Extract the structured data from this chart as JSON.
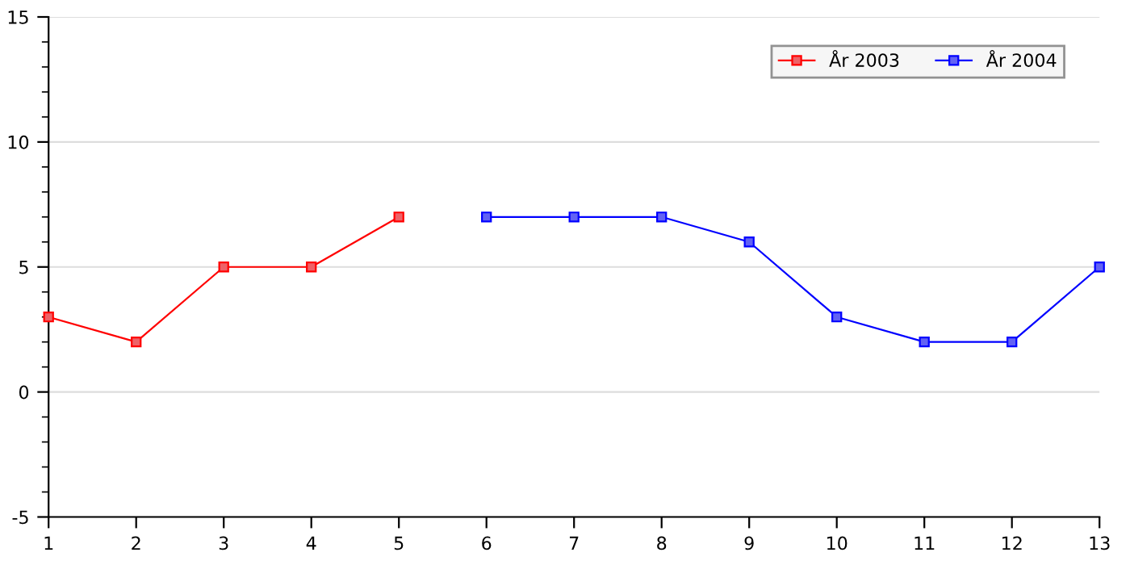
{
  "chart_data": {
    "type": "line",
    "series": [
      {
        "name": "År 2003",
        "color": "#ff0000",
        "x": [
          1,
          2,
          3,
          4,
          5
        ],
        "values": [
          3,
          2,
          5,
          5,
          7
        ]
      },
      {
        "name": "År 2004",
        "color": "#0000ff",
        "x": [
          6,
          7,
          8,
          9,
          10,
          11,
          12,
          13
        ],
        "values": [
          7,
          7,
          7,
          6,
          3,
          2,
          2,
          5
        ]
      }
    ],
    "xlim": [
      1,
      13
    ],
    "xticks": [
      1,
      2,
      3,
      4,
      5,
      6,
      7,
      8,
      9,
      10,
      11,
      12,
      13
    ],
    "ylim": [
      -5,
      15
    ],
    "yticks": [
      -5,
      0,
      5,
      10,
      15
    ],
    "grid": "y",
    "legend": "top right",
    "marker": "square",
    "line_style": "solid"
  }
}
